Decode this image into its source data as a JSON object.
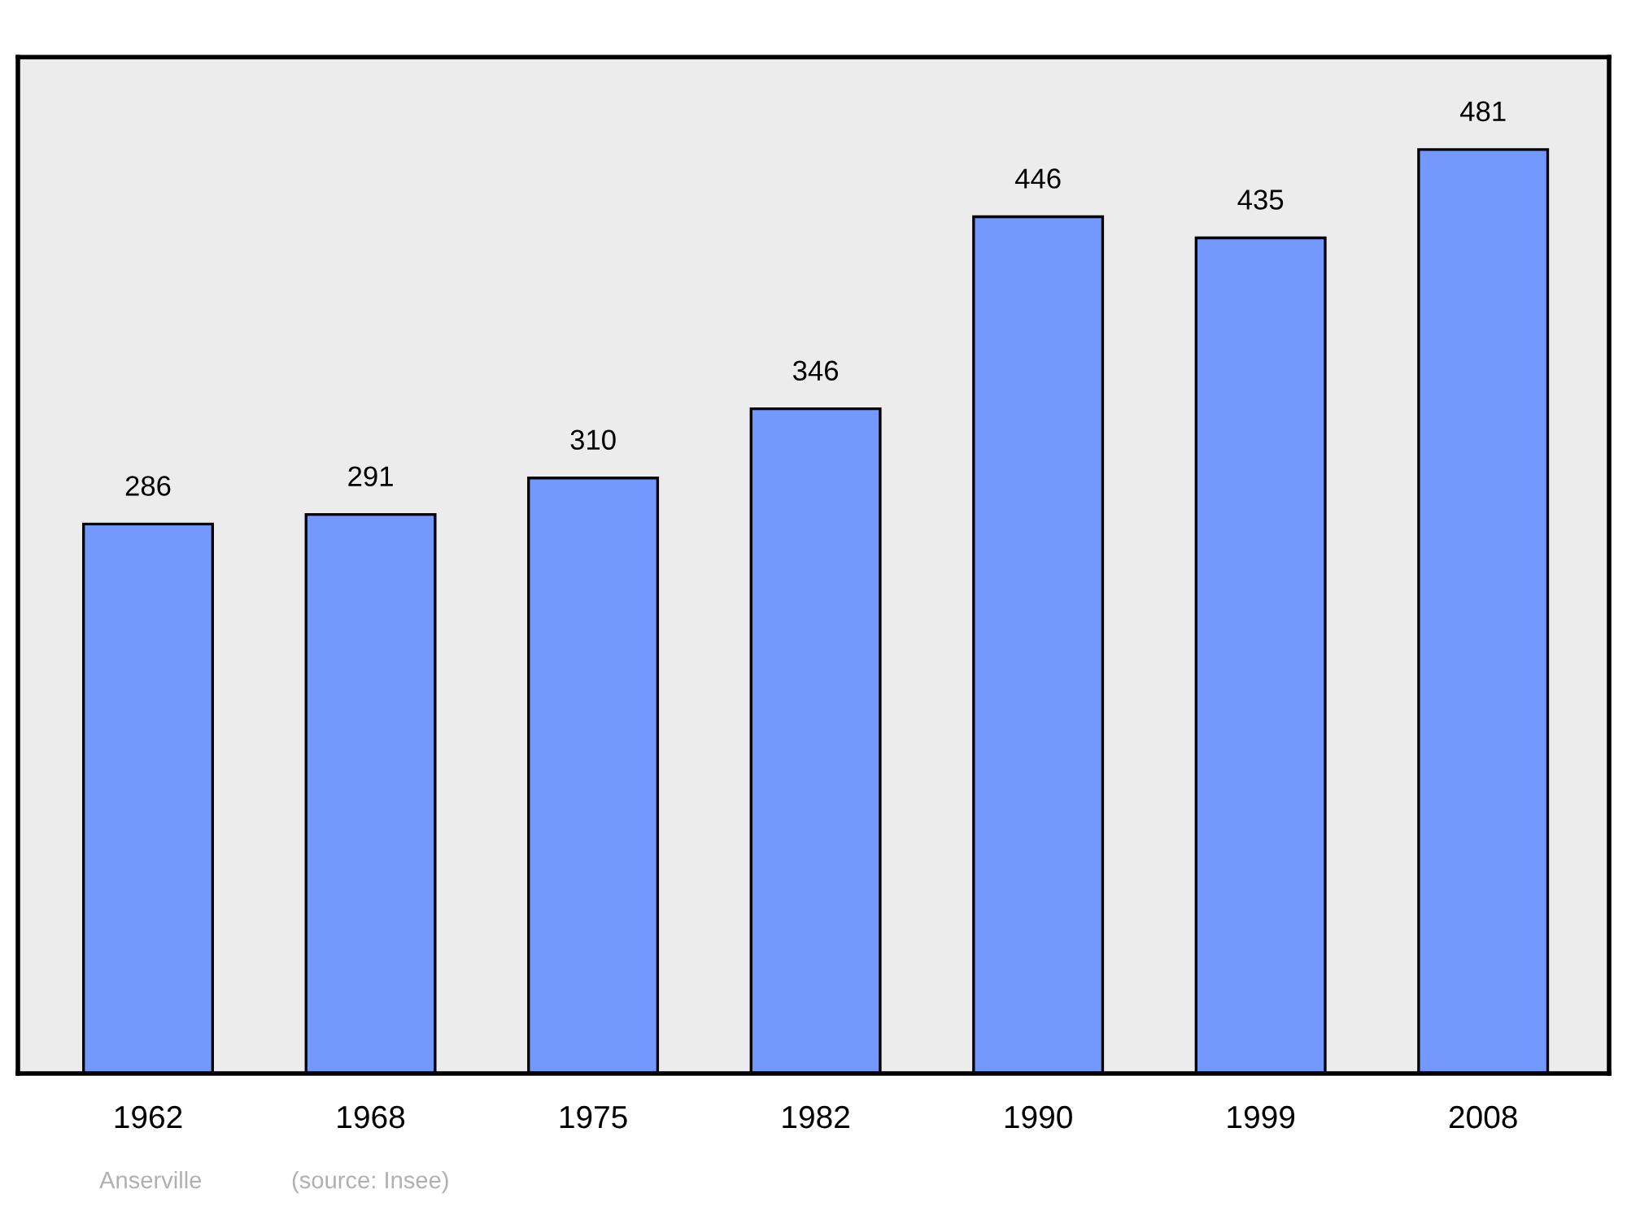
{
  "chart_data": {
    "type": "bar",
    "categories": [
      "1962",
      "1968",
      "1975",
      "1982",
      "1990",
      "1999",
      "2008"
    ],
    "values": [
      286,
      291,
      310,
      346,
      446,
      435,
      481
    ],
    "color": "#7399ff",
    "data_labels": true,
    "grid": false,
    "legend": false,
    "annotations": [
      "Anserville",
      "(source: Insee)"
    ]
  }
}
